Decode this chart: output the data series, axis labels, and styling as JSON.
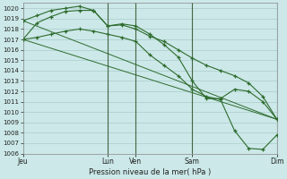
{
  "xlabel": "Pression niveau de la mer( hPa )",
  "bg_color": "#cce8e8",
  "grid_color": "#aacccc",
  "line_color": "#2d6b2d",
  "ylim": [
    1006,
    1020.5
  ],
  "yticks": [
    1006,
    1007,
    1008,
    1009,
    1010,
    1011,
    1012,
    1013,
    1014,
    1015,
    1016,
    1017,
    1018,
    1019,
    1020
  ],
  "xtick_labels": [
    "Jeu",
    "",
    "Lun",
    "Ven",
    "",
    "Sam",
    "",
    "Dim"
  ],
  "xtick_positions": [
    0,
    3,
    6,
    8,
    10,
    12,
    15,
    18
  ],
  "xtick_show": [
    "Jeu",
    "Lun",
    "Ven",
    "Sam",
    "Dim"
  ],
  "xtick_show_pos": [
    0,
    6,
    8,
    12,
    18
  ],
  "vlines": [
    6,
    8,
    12,
    18
  ],
  "line1_x": [
    0,
    1,
    2,
    3,
    4,
    5,
    6,
    7,
    8,
    9,
    10,
    11,
    12,
    13,
    14,
    15,
    16,
    17,
    18
  ],
  "line1_y": [
    1017.0,
    1018.6,
    1019.2,
    1019.7,
    1019.8,
    1019.8,
    1018.3,
    1018.5,
    1018.3,
    1017.5,
    1016.5,
    1015.3,
    1013.0,
    1011.3,
    1011.3,
    1012.2,
    1012.0,
    1011.0,
    1009.3
  ],
  "line2_x": [
    0,
    1,
    2,
    3,
    4,
    5,
    6,
    7,
    8,
    9,
    10,
    11,
    12,
    13,
    14,
    15,
    16,
    17,
    18
  ],
  "line2_y": [
    1018.8,
    1019.3,
    1019.8,
    1020.0,
    1020.2,
    1019.8,
    1018.3,
    1018.4,
    1018.0,
    1017.3,
    1016.8,
    1016.0,
    1015.2,
    1014.5,
    1014.0,
    1013.5,
    1012.8,
    1011.5,
    1009.3
  ],
  "line3_x": [
    0,
    18
  ],
  "line3_y": [
    1017.0,
    1009.3
  ],
  "line4_x": [
    0,
    18
  ],
  "line4_y": [
    1018.8,
    1009.3
  ],
  "line5_x": [
    0,
    1,
    2,
    3,
    4,
    5,
    6,
    7,
    8,
    9,
    10,
    11,
    12,
    13,
    14,
    15,
    16,
    17,
    18
  ],
  "line5_y": [
    1017.0,
    1017.2,
    1017.5,
    1017.8,
    1018.0,
    1017.8,
    1017.5,
    1017.2,
    1016.8,
    1015.5,
    1014.5,
    1013.5,
    1012.2,
    1011.5,
    1011.2,
    1008.2,
    1006.5,
    1006.4,
    1007.8
  ]
}
